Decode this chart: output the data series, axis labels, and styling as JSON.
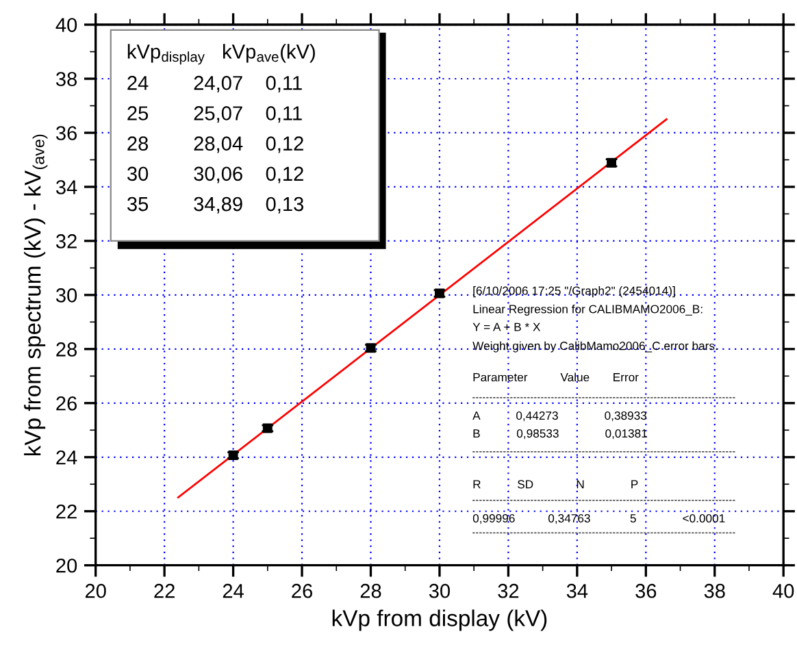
{
  "chart_data": {
    "type": "scatter",
    "xlabel": "kVp from display (kV)",
    "ylabel": "kVp from spectrum (kV) - kV$_{(ave)}$",
    "x": [
      24,
      25,
      28,
      30,
      35
    ],
    "series": [
      {
        "color": "#000000",
        "values": [
          24.07,
          25.07,
          28.04,
          30.06,
          34.89
        ],
        "errors": [
          0.11,
          0.11,
          0.12,
          0.12,
          0.13
        ],
        "marker": "square"
      },
      {
        "type": "line",
        "color": "#ff0000",
        "x": [
          22.4,
          36.6
        ],
        "values": [
          22.51,
          36.5
        ],
        "marker": "none",
        "line_style": "solid"
      }
    ],
    "xlim": [
      20,
      40
    ],
    "xticks": [
      20,
      22,
      24,
      26,
      28,
      30,
      32,
      34,
      36,
      38,
      40
    ],
    "ylim": [
      20,
      40
    ],
    "yticks": [
      20,
      22,
      24,
      26,
      28,
      30,
      32,
      34,
      36,
      38,
      40
    ],
    "grid": true,
    "annotations": [
      "kVp$_{display}$   kVp$_{ave}$(kV)",
      "24        24,07    0,11",
      "25        25,07    0,11",
      "28        28,04    0,12",
      "30        30,06    0,12",
      "35        34,89    0,13",
      "[6/10/2006 17:25 \"/Graph2\" (2454014)]",
      "Linear Regression for CALIBMAMO2006_B:",
      "Y = A + B * X",
      "Weight given by CalibMamo2006_C error bars.",
      "Parameter          Value       Error",
      "A           0,44273              0,38933",
      "B           0,98533              0,01381",
      "R           SD             N              P",
      "0,99996          0,34763            5              <0.0001"
    ]
  }
}
